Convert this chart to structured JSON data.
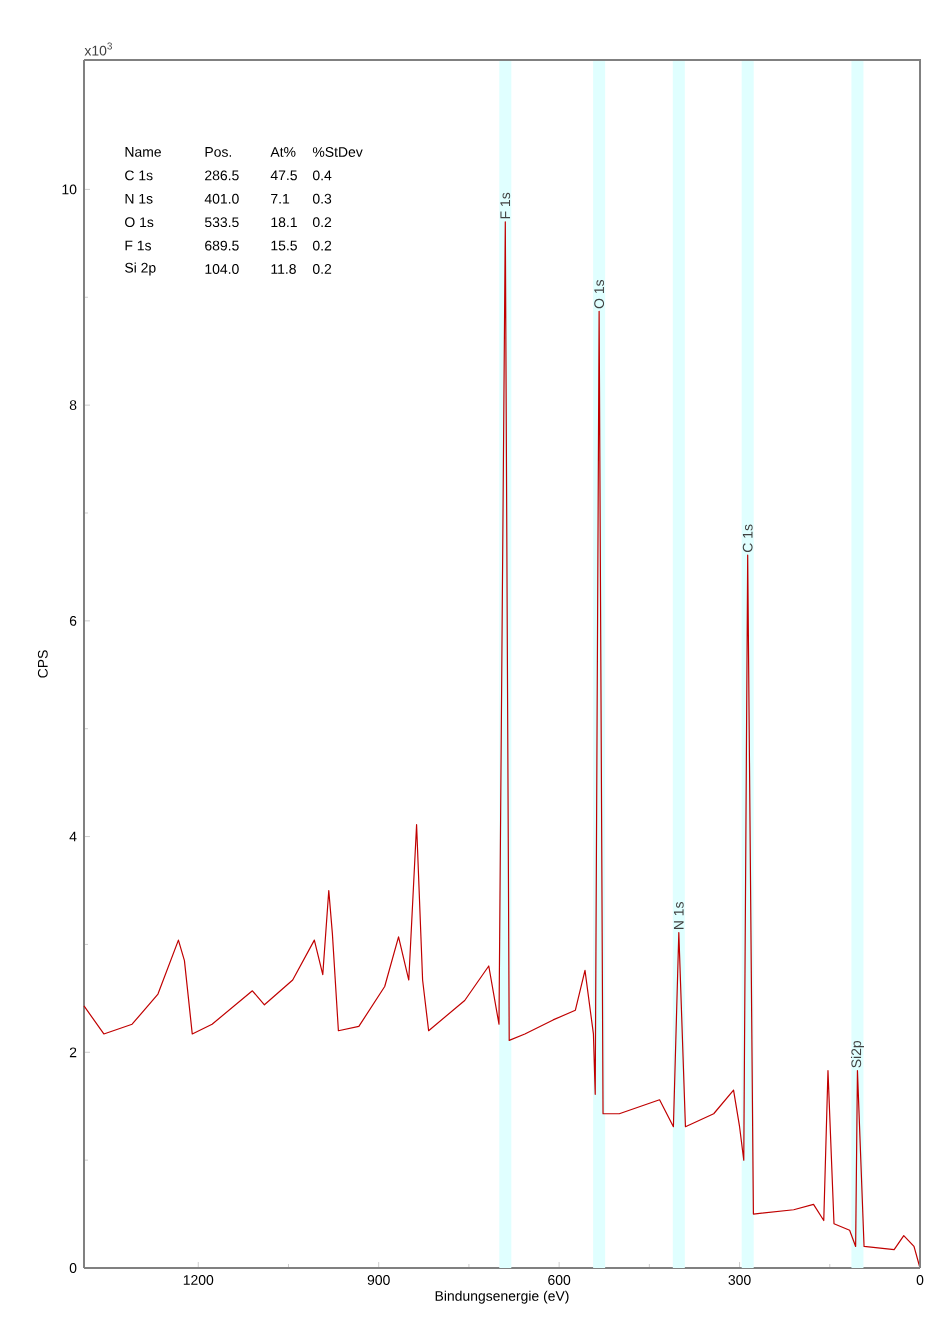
{
  "chart_data": {
    "type": "line",
    "xlabel": "Bindungsenergie (eV)",
    "ylabel": "CPS",
    "xlim": [
      1390,
      0
    ],
    "ylim": [
      0,
      11.2
    ],
    "xticks": [
      1200,
      900,
      600,
      300,
      0
    ],
    "yticks": [
      0,
      2,
      4,
      6,
      8,
      10
    ],
    "series": [
      {
        "color": "#c00000",
        "x": [
          1390,
          1357,
          1310,
          1267,
          1233,
          1223,
          1210,
          1177,
          1110,
          1090,
          1043,
          1007,
          993,
          983,
          977,
          967,
          933,
          890,
          867,
          850,
          837,
          827,
          817,
          757,
          717,
          700,
          689.5,
          683,
          657,
          610,
          573,
          557,
          543,
          540,
          533.5,
          527,
          500,
          433,
          410,
          401,
          390,
          343,
          310,
          300,
          293,
          286.5,
          277,
          210,
          177,
          160,
          153,
          143,
          117,
          107,
          104,
          93,
          43,
          27,
          10,
          0
        ],
        "values": [
          2.43,
          2.17,
          2.26,
          2.54,
          3.04,
          2.85,
          2.17,
          2.26,
          2.57,
          2.44,
          2.67,
          3.04,
          2.72,
          3.5,
          3.1,
          2.2,
          2.24,
          2.61,
          3.07,
          2.67,
          4.11,
          2.67,
          2.2,
          2.48,
          2.8,
          2.26,
          9.7,
          2.11,
          2.17,
          2.3,
          2.39,
          2.76,
          2.17,
          1.61,
          8.87,
          1.43,
          1.43,
          1.56,
          1.31,
          3.11,
          1.31,
          1.43,
          1.65,
          1.31,
          1.0,
          6.61,
          0.5,
          0.54,
          0.59,
          0.44,
          1.83,
          0.41,
          0.35,
          0.2,
          1.83,
          0.2,
          0.17,
          0.3,
          0.2,
          0
        ]
      }
    ],
    "bands": [
      {
        "axis": "x",
        "from": 699.5,
        "to": 679.5,
        "color": "#e0ffff"
      },
      {
        "axis": "x",
        "from": 543.5,
        "to": 523.5,
        "color": "#e0ffff"
      },
      {
        "axis": "x",
        "from": 411,
        "to": 391,
        "color": "#e0ffff"
      },
      {
        "axis": "x",
        "from": 296.5,
        "to": 276.5,
        "color": "#e0ffff"
      },
      {
        "axis": "x",
        "from": 114,
        "to": 94,
        "color": "#e0ffff"
      }
    ],
    "annotations": [
      "x10$^{3}$",
      {
        "text": "F 1s",
        "x": 689.5,
        "y": 9.7
      },
      {
        "text": "O 1s",
        "x": 533.5,
        "y": 8.87
      },
      {
        "text": "N 1s",
        "x": 401,
        "y": 3.11
      },
      {
        "text": "C 1s",
        "x": 286.5,
        "y": 6.61
      },
      {
        "text": "Si2p",
        "x": 104,
        "y": 1.83
      },
      "Name",
      "Pos.",
      "At%",
      "%StDev",
      "C 1s",
      "286.5",
      "47.5",
      "0.4",
      "N 1s",
      "401.0",
      "7.1",
      "0.3",
      "O 1s",
      "533.5",
      "18.1",
      "0.2",
      "F 1s",
      "689.5",
      "15.5",
      "0.2",
      "Si 2p",
      "104.0",
      "11.8",
      "0.2"
    ]
  }
}
